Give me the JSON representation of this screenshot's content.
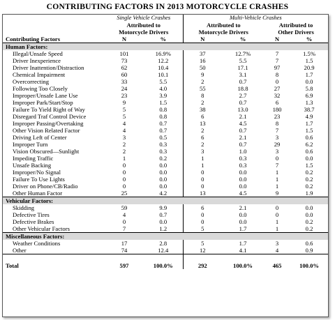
{
  "title": "CONTRIBUTING FACTORS IN 2013 MOTORCYCLE CRASHES",
  "groups": {
    "single": "Single Vehicle Crashes",
    "multi": "Multi-Vehicle Crashes"
  },
  "subgroups": {
    "single_moto": [
      "Attributed to",
      "Motorcycle Drivers"
    ],
    "multi_moto": [
      "Attributed to",
      "Motorcycle Drivers"
    ],
    "multi_other": [
      "Attributed to",
      "Other Drivers"
    ]
  },
  "columns": {
    "factor": "Contributing Factors",
    "n": "N",
    "pct": "%"
  },
  "sections": [
    {
      "label": "Human Factors:",
      "rows": [
        [
          "Illegal/Unsafe Speed",
          "101",
          "16.9%",
          "37",
          "12.7%",
          "7",
          "1.5%"
        ],
        [
          "Driver Inexperience",
          "73",
          "12.2",
          "16",
          "5.5",
          "7",
          "1.5"
        ],
        [
          "Driver Inattention/Distraction",
          "62",
          "10.4",
          "50",
          "17.1",
          "97",
          "20.9"
        ],
        [
          "Chemical Impairment",
          "60",
          "10.1",
          "9",
          "3.1",
          "8",
          "1.7"
        ],
        [
          "Overcorrecting",
          "33",
          "5.5",
          "2",
          "0.7",
          "0",
          "0.0"
        ],
        [
          "Following Too Closely",
          "24",
          "4.0",
          "55",
          "18.8",
          "27",
          "5.8"
        ],
        [
          "Improper/Unsafe Lane Use",
          "23",
          "3.9",
          "8",
          "2.7",
          "32",
          "6.9"
        ],
        [
          "Improper Park/Start/Stop",
          "9",
          "1.5",
          "2",
          "0.7",
          "6",
          "1.3"
        ],
        [
          "Failure To Yield Right of Way",
          "5",
          "0.8",
          "38",
          "13.0",
          "180",
          "38.7"
        ],
        [
          "Disregard Traf Control Device",
          "5",
          "0.8",
          "6",
          "2.1",
          "23",
          "4.9"
        ],
        [
          "Improper Passing/Overtaking",
          "4",
          "0.7",
          "13",
          "4.5",
          "8",
          "1.7"
        ],
        [
          "Other Vision Related Factor",
          "4",
          "0.7",
          "2",
          "0.7",
          "7",
          "1.5"
        ],
        [
          "Driving Left of Center",
          "3",
          "0.5",
          "6",
          "2.1",
          "3",
          "0.6"
        ],
        [
          "Improper Turn",
          "2",
          "0.3",
          "2",
          "0.7",
          "29",
          "6.2"
        ],
        [
          "Vision Obscured—Sunlight",
          "2",
          "0.3",
          "3",
          "1.0",
          "3",
          "0.6"
        ],
        [
          "Impeding Traffic",
          "1",
          "0.2",
          "1",
          "0.3",
          "0",
          "0.0"
        ],
        [
          "Unsafe Backing",
          "0",
          "0.0",
          "1",
          "0.3",
          "7",
          "1.5"
        ],
        [
          "Improper/No Signal",
          "0",
          "0.0",
          "0",
          "0.0",
          "1",
          "0.2"
        ],
        [
          "Failure To Use Lights",
          "0",
          "0.0",
          "0",
          "0.0",
          "1",
          "0.2"
        ],
        [
          "Driver on Phone/CB/Radio",
          "0",
          "0.0",
          "0",
          "0.0",
          "1",
          "0.2"
        ],
        [
          "Other Human Factor",
          "25",
          "4.2",
          "13",
          "4.5",
          "9",
          "1.9"
        ]
      ]
    },
    {
      "label": "Vehicular Factors:",
      "rows": [
        [
          "Skidding",
          "59",
          "9.9",
          "6",
          "2.1",
          "0",
          "0.0"
        ],
        [
          "Defective Tires",
          "4",
          "0.7",
          "0",
          "0.0",
          "0",
          "0.0"
        ],
        [
          "Defective Brakes",
          "0",
          "0.0",
          "0",
          "0.0",
          "1",
          "0.2"
        ],
        [
          "Other Vehicular Factors",
          "7",
          "1.2",
          "5",
          "1.7",
          "1",
          "0.2"
        ]
      ]
    },
    {
      "label": "Miscellaneous Factors:",
      "rows": [
        [
          "Weather Conditions",
          "17",
          "2.8",
          "5",
          "1.7",
          "3",
          "0.6"
        ],
        [
          "Other",
          "74",
          "12.4",
          "12",
          "4.1",
          "4",
          "0.9"
        ]
      ]
    }
  ],
  "total": [
    "Total",
    "597",
    "100.0%",
    "292",
    "100.0%",
    "465",
    "100.0%"
  ]
}
